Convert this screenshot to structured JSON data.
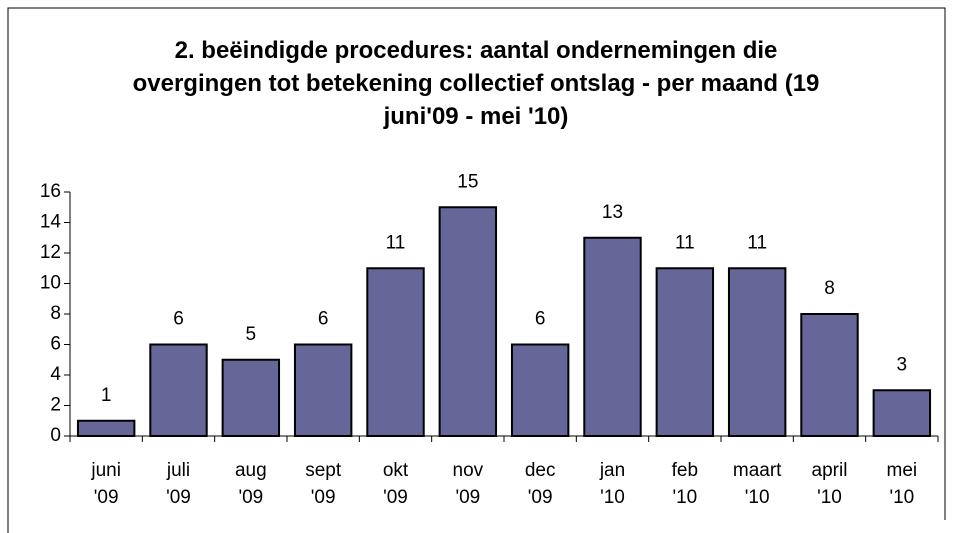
{
  "chart_data": {
    "type": "bar",
    "title": "2. beëindigde procedures: aantal ondernemingen die overgingen tot betekening collectief ontslag - per maand (19 juni'09 - mei '10)",
    "categories": [
      "juni '09",
      "juli '09",
      "aug '09",
      "sept '09",
      "okt '09",
      "nov '09",
      "dec '09",
      "jan '10",
      "feb '10",
      "maart '10",
      "april '10",
      "mei '10"
    ],
    "values": [
      1,
      6,
      5,
      6,
      11,
      15,
      6,
      13,
      11,
      11,
      8,
      3
    ],
    "color": "#666699",
    "ylim": [
      0,
      16
    ],
    "yticks": [
      0,
      2,
      4,
      6,
      8,
      10,
      12,
      14,
      16
    ],
    "grid": false
  }
}
